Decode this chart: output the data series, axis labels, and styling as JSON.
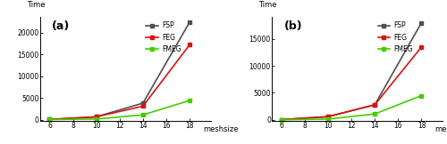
{
  "a": {
    "x": [
      6,
      10,
      14,
      18
    ],
    "FSP": [
      50,
      650,
      3800,
      22400
    ],
    "FEG": [
      50,
      650,
      3100,
      17200
    ],
    "FMEG": [
      30,
      150,
      1100,
      4400
    ],
    "label": "(a)",
    "ylim": [
      -300,
      23500
    ],
    "yticks": [
      0,
      5000,
      10000,
      15000,
      20000
    ]
  },
  "b": {
    "x": [
      6,
      10,
      14,
      18
    ],
    "FSP": [
      50,
      600,
      2800,
      18000
    ],
    "FEG": [
      50,
      600,
      2800,
      13500
    ],
    "FMEG": [
      30,
      150,
      1100,
      4500
    ],
    "label": "(b)",
    "ylim": [
      -200,
      19000
    ],
    "yticks": [
      0,
      5000,
      10000,
      15000
    ]
  },
  "colors": {
    "FSP": "#505050",
    "FEG": "#dd1111",
    "FMEG": "#44cc00"
  },
  "xticks": [
    6,
    8,
    10,
    12,
    14,
    16,
    18
  ],
  "xlim": [
    5.2,
    19.8
  ],
  "xlabel": "meshsize",
  "ylabel": "Time",
  "linewidth": 1.2,
  "markersize": 3.5,
  "tick_fontsize": 5.5,
  "label_fontsize": 6.0,
  "sublabel_fontsize": 9,
  "legend_fontsize": 5.5
}
